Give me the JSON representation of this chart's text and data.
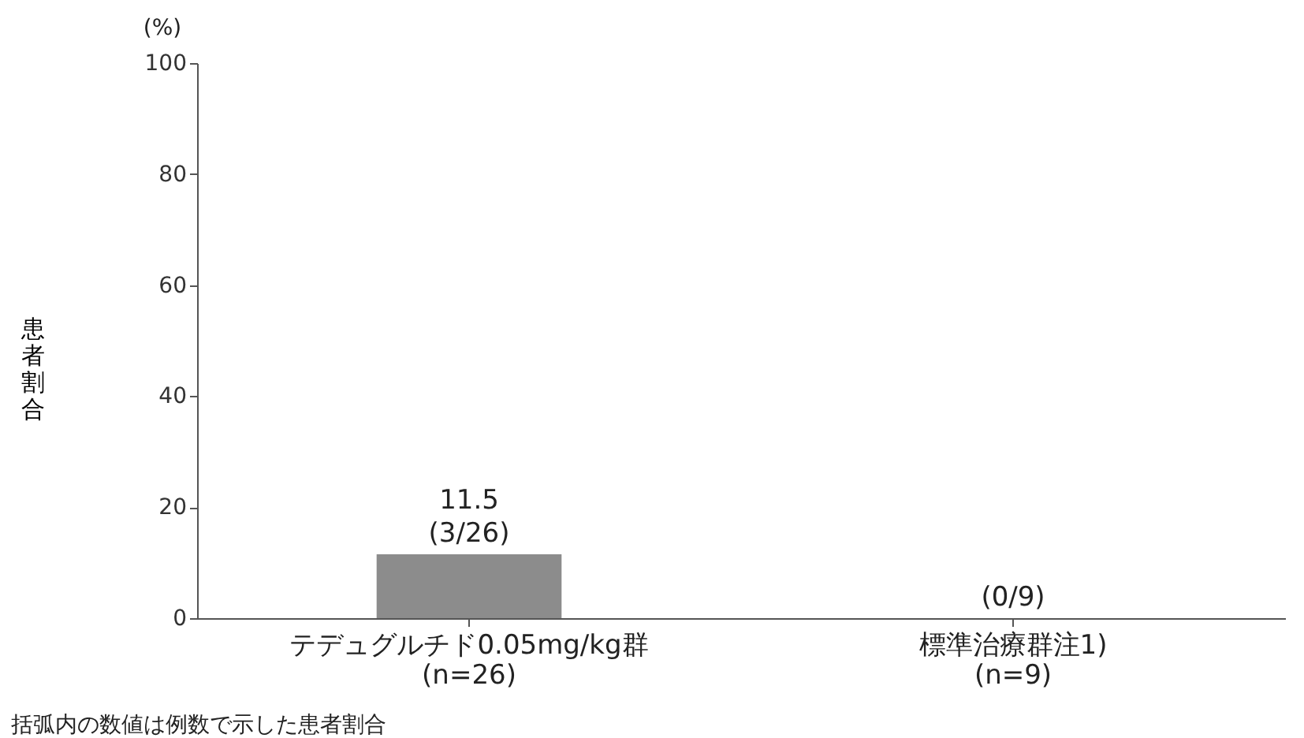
{
  "chart_data": {
    "type": "bar",
    "categories": [
      "テデュグルチド0.05mg/kg群\n(n=26)",
      "標準治療群注1)\n(n=9)"
    ],
    "values": [
      11.5,
      0
    ],
    "value_labels": [
      "11.5\n(3/26)",
      "(0/9)"
    ],
    "color": "#8c8c8c",
    "ylabel": "患者割合",
    "annotations": [
      "(%)",
      "括弧内の数値は例数で示した患者割合"
    ],
    "ylim": [
      0,
      100
    ],
    "yticks": [
      0,
      20,
      40,
      60,
      80,
      100
    ],
    "grid": false
  }
}
